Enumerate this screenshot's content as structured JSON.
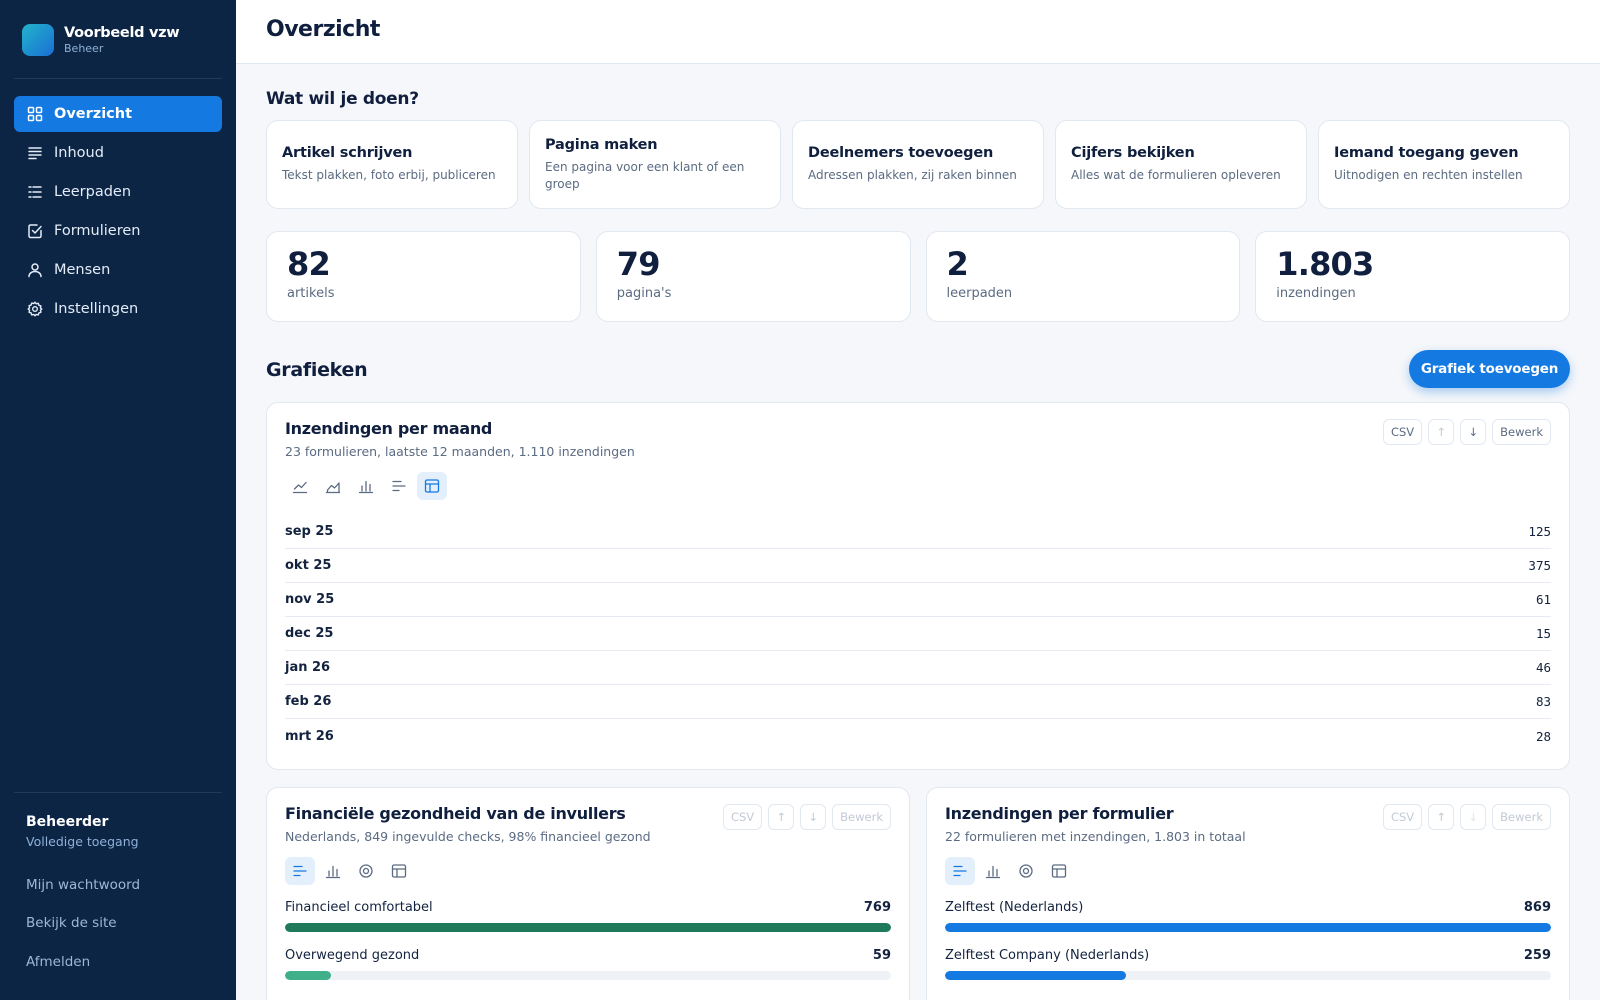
{
  "brand": {
    "name": "Voorbeeld vzw",
    "sub": "Beheer"
  },
  "nav": [
    {
      "label": "Overzicht",
      "icon": "dashboard-icon",
      "active": true
    },
    {
      "label": "Inhoud",
      "icon": "lines-icon"
    },
    {
      "label": "Leerpaden",
      "icon": "list-icon"
    },
    {
      "label": "Formulieren",
      "icon": "checkbox-icon"
    },
    {
      "label": "Mensen",
      "icon": "user-icon"
    },
    {
      "label": "Instellingen",
      "icon": "gear-icon"
    }
  ],
  "account": {
    "role": "Beheerder",
    "access": "Volledige toegang",
    "links": [
      "Mijn wachtwoord",
      "Bekijk de site",
      "Afmelden"
    ]
  },
  "page": {
    "title": "Overzicht"
  },
  "quick": {
    "title": "Wat wil je doen?",
    "actions": [
      {
        "title": "Artikel schrijven",
        "desc": "Tekst plakken, foto erbij, publiceren"
      },
      {
        "title": "Pagina maken",
        "desc": "Een pagina voor een klant of een groep"
      },
      {
        "title": "Deelnemers toevoegen",
        "desc": "Adressen plakken, zij raken binnen"
      },
      {
        "title": "Cijfers bekijken",
        "desc": "Alles wat de formulieren opleveren"
      },
      {
        "title": "Iemand toegang geven",
        "desc": "Uitnodigen en rechten instellen"
      }
    ]
  },
  "stats": [
    {
      "value": "82",
      "label": "artikels"
    },
    {
      "value": "79",
      "label": "pagina's"
    },
    {
      "value": "2",
      "label": "leerpaden"
    },
    {
      "value": "1.803",
      "label": "inzendingen"
    }
  ],
  "charts_section": {
    "title": "Grafieken",
    "add_label": "Grafiek toevoegen"
  },
  "tools": {
    "csv": "CSV",
    "up": "↑",
    "down": "↓",
    "edit": "Bewerk"
  },
  "chart_data": [
    {
      "type": "table",
      "title": "Inzendingen per maand",
      "subtitle": "23 formulieren, laatste 12 maanden, 1.110 inzendingen",
      "categories": [
        "sep 25",
        "okt 25",
        "nov 25",
        "dec 25",
        "jan 26",
        "feb 26",
        "mrt 26"
      ],
      "values": [
        "125",
        "375",
        "61",
        "15",
        "46",
        "83",
        "28"
      ]
    },
    {
      "type": "bar",
      "orientation": "horizontal",
      "title": "Financiële gezondheid van de invullers",
      "subtitle": "Nederlands, 849 ingevulde checks, 98% financieel gezond",
      "categories": [
        "Financieel comfortabel",
        "Overwegend gezond"
      ],
      "values": [
        769,
        59
      ],
      "max": 769,
      "colors": [
        "#1e7a5a",
        "#3fb08a"
      ]
    },
    {
      "type": "bar",
      "orientation": "horizontal",
      "title": "Inzendingen per formulier",
      "subtitle": "22 formulieren met inzendingen, 1.803 in totaal",
      "categories": [
        "Zelftest (Nederlands)",
        "Zelftest Company (Nederlands)"
      ],
      "values": [
        869,
        259
      ],
      "max": 869,
      "colors": [
        "#1479e0",
        "#1479e0"
      ]
    }
  ]
}
